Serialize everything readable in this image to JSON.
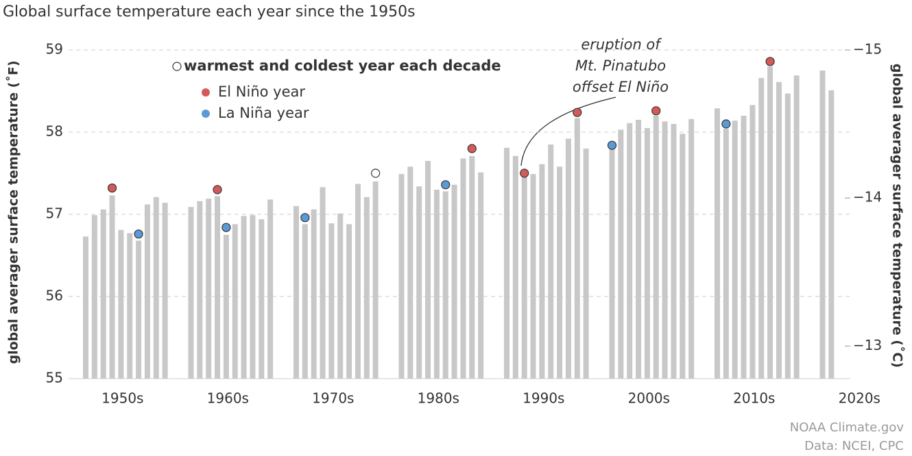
{
  "chart_data": {
    "type": "bar",
    "title": "Global surface temperature each year since the 1950s",
    "y_label": "global averager surface temperature (˚F)",
    "y2_label": "global averager surface temperature (˚C)",
    "color": "#c8c8c8",
    "groups": [
      {
        "label": "1950s",
        "values": [
          56.73,
          56.99,
          57.06,
          57.23,
          56.81,
          56.77,
          56.68,
          57.12,
          57.21,
          57.14
        ]
      },
      {
        "label": "1960s",
        "values": [
          57.09,
          57.16,
          57.19,
          57.22,
          56.75,
          56.88,
          56.98,
          56.99,
          56.94,
          57.18
        ]
      },
      {
        "label": "1970s",
        "values": [
          57.1,
          56.88,
          57.06,
          57.33,
          56.89,
          57.01,
          56.88,
          57.37,
          57.21,
          57.4
        ]
      },
      {
        "label": "1980s",
        "values": [
          57.49,
          57.58,
          57.34,
          57.65,
          57.3,
          57.28,
          57.36,
          57.68,
          57.71,
          57.51
        ]
      },
      {
        "label": "1990s",
        "values": [
          57.81,
          57.71,
          57.45,
          57.49,
          57.61,
          57.85,
          57.58,
          57.92,
          58.17,
          57.8
        ]
      },
      {
        "label": "2000s",
        "values": [
          57.79,
          58.03,
          58.11,
          58.15,
          58.05,
          58.2,
          58.13,
          58.1,
          57.98,
          58.16
        ]
      },
      {
        "label": "2010s",
        "values": [
          58.29,
          58.04,
          58.14,
          58.2,
          58.33,
          58.66,
          58.8,
          58.61,
          58.47,
          58.69
        ]
      },
      {
        "label": "2020s",
        "values": [
          58.75,
          58.51
        ]
      }
    ],
    "markers": [
      {
        "name": "warmest and coldest year each decade",
        "color": "#ffffff",
        "points": [
          {
            "group": 2,
            "index": 9,
            "value": 57.5
          }
        ]
      },
      {
        "name": "El Niño year",
        "color": "#d45a5a",
        "points": [
          {
            "group": 0,
            "index": 3,
            "value": 57.32
          },
          {
            "group": 1,
            "index": 3,
            "value": 57.3
          },
          {
            "group": 3,
            "index": 8,
            "value": 57.8
          },
          {
            "group": 4,
            "index": 2,
            "value": 57.5
          },
          {
            "group": 4,
            "index": 8,
            "value": 58.24
          },
          {
            "group": 5,
            "index": 5,
            "value": 58.26
          },
          {
            "group": 6,
            "index": 6,
            "value": 58.86
          }
        ]
      },
      {
        "name": "La Niña year",
        "color": "#5b9bd5",
        "points": [
          {
            "group": 0,
            "index": 6,
            "value": 56.76
          },
          {
            "group": 1,
            "index": 4,
            "value": 56.84
          },
          {
            "group": 2,
            "index": 1,
            "value": 56.96
          },
          {
            "group": 3,
            "index": 5,
            "value": 57.36
          },
          {
            "group": 5,
            "index": 0,
            "value": 57.84
          },
          {
            "group": 6,
            "index": 1,
            "value": 58.1
          }
        ]
      }
    ],
    "annotation": [
      "eruption of",
      "Mt. Pinatubo",
      "offset El Niño"
    ],
    "ylim": [
      55,
      59
    ],
    "yticks": [
      55,
      56,
      57,
      58,
      59
    ],
    "y2lim": [
      -12.78,
      -15
    ],
    "y2ticks": [
      {
        "value": -15,
        "label": "−15"
      },
      {
        "value": -14,
        "label": "−14"
      },
      {
        "value": -13,
        "label": "−13"
      }
    ],
    "grid": true,
    "source": [
      "NOAA Climate.gov",
      "Data: NCEI, CPC"
    ]
  }
}
